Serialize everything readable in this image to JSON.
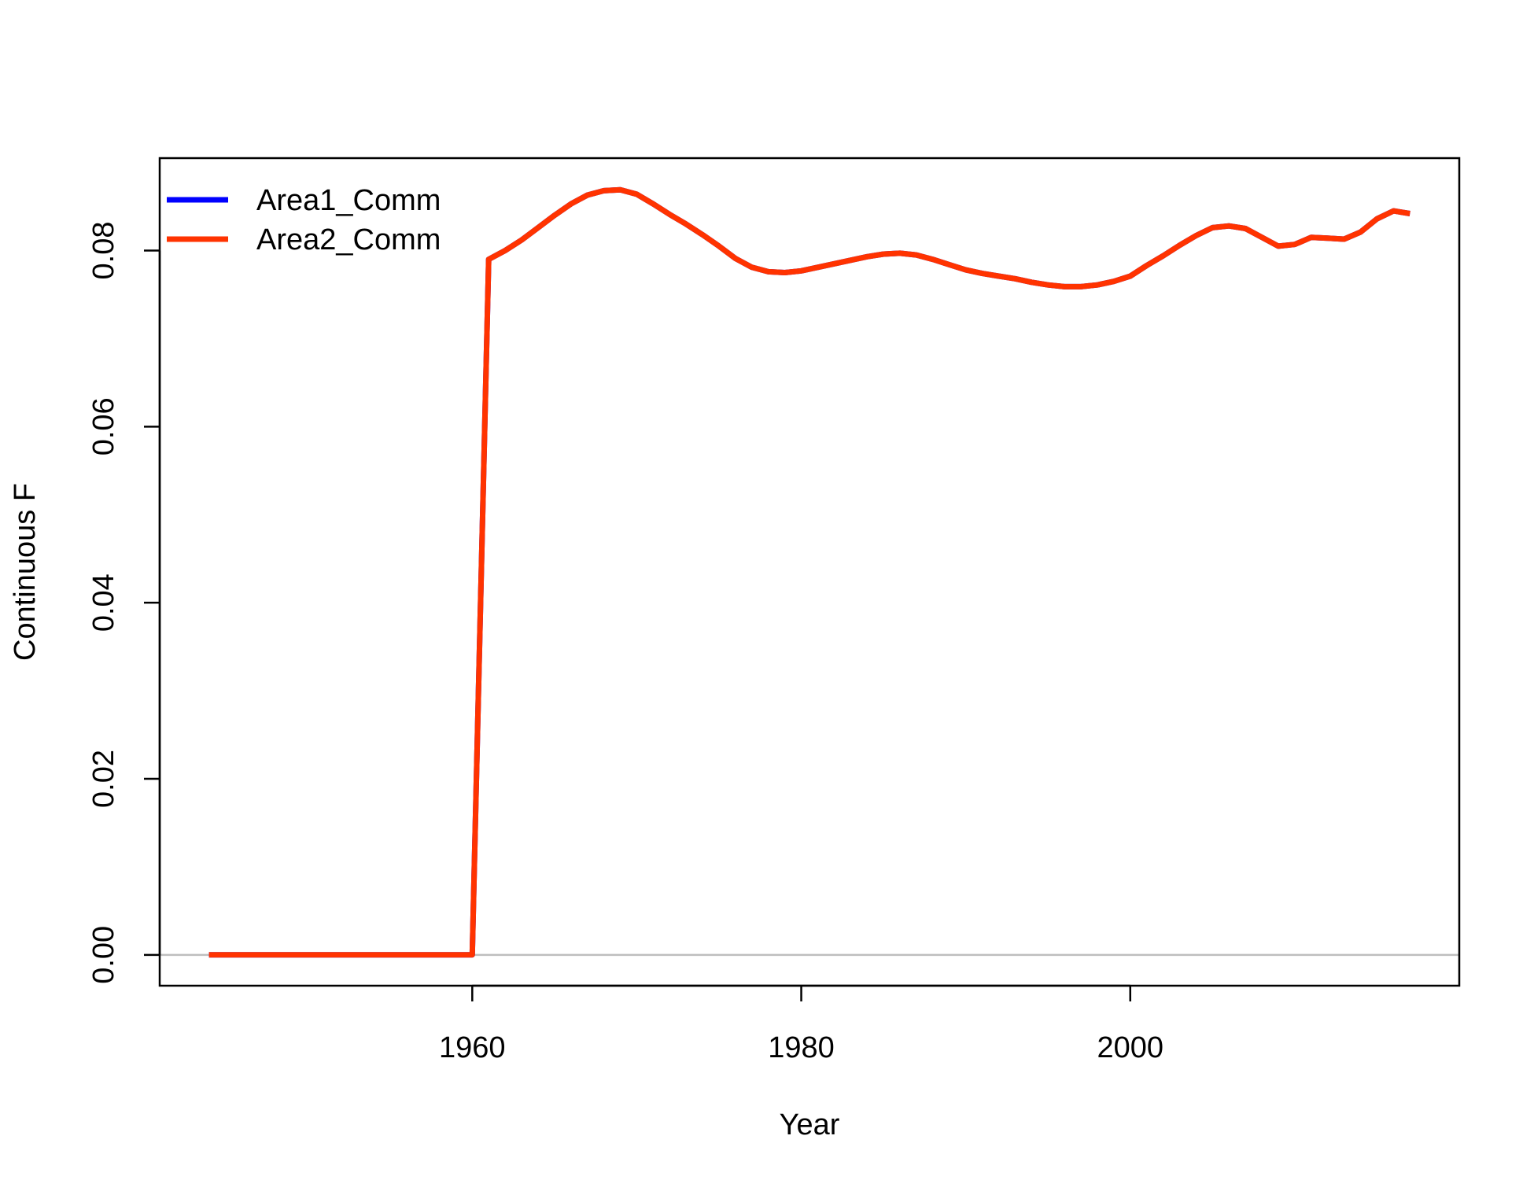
{
  "chart_data": {
    "type": "line",
    "title": "",
    "xlabel": "Year",
    "ylabel": "Continuous F",
    "xlim": [
      1941,
      2020
    ],
    "ylim": [
      -0.0035,
      0.0905
    ],
    "xticks": [
      1960,
      1980,
      2000
    ],
    "yticks": [
      0.0,
      0.02,
      0.04,
      0.06,
      0.08
    ],
    "ytick_labels": [
      "0.00",
      "0.02",
      "0.04",
      "0.06",
      "0.08"
    ],
    "reference_line": {
      "y": 0.0,
      "color": "#bebebe"
    },
    "grid": false,
    "legend": {
      "position": "top-left"
    },
    "x": [
      1944,
      1945,
      1946,
      1947,
      1948,
      1949,
      1950,
      1951,
      1952,
      1953,
      1954,
      1955,
      1956,
      1957,
      1958,
      1959,
      1960,
      1961,
      1962,
      1963,
      1964,
      1965,
      1966,
      1967,
      1968,
      1969,
      1970,
      1971,
      1972,
      1973,
      1974,
      1975,
      1976,
      1977,
      1978,
      1979,
      1980,
      1981,
      1982,
      1983,
      1984,
      1985,
      1986,
      1987,
      1988,
      1989,
      1990,
      1991,
      1992,
      1993,
      1994,
      1995,
      1996,
      1997,
      1998,
      1999,
      2000,
      2001,
      2002,
      2003,
      2004,
      2005,
      2006,
      2007,
      2008,
      2009,
      2010,
      2011,
      2012,
      2013,
      2014,
      2015,
      2016,
      2017
    ],
    "series": [
      {
        "name": "Area1_Comm",
        "color": "#0000ff",
        "values": [
          0,
          0,
          0,
          0,
          0,
          0,
          0,
          0,
          0,
          0,
          0,
          0,
          0,
          0,
          0,
          0,
          0,
          0.079,
          0.08,
          0.0812,
          0.0826,
          0.084,
          0.0853,
          0.0863,
          0.0868,
          0.0869,
          0.0864,
          0.0853,
          0.0841,
          0.083,
          0.0818,
          0.0805,
          0.0791,
          0.0781,
          0.0776,
          0.0775,
          0.0777,
          0.0781,
          0.0785,
          0.0789,
          0.0793,
          0.0796,
          0.0797,
          0.0795,
          0.079,
          0.0784,
          0.0778,
          0.0774,
          0.0771,
          0.0768,
          0.0764,
          0.0761,
          0.0759,
          0.0759,
          0.0761,
          0.0765,
          0.0771,
          0.0783,
          0.0794,
          0.0806,
          0.0817,
          0.0826,
          0.0828,
          0.0825,
          0.0815,
          0.0805,
          0.0807,
          0.0815,
          0.0814,
          0.0813,
          0.0821,
          0.0836,
          0.0845,
          0.0842
        ]
      },
      {
        "name": "Area2_Comm",
        "color": "#ff3300",
        "values": [
          0,
          0,
          0,
          0,
          0,
          0,
          0,
          0,
          0,
          0,
          0,
          0,
          0,
          0,
          0,
          0,
          0,
          0.079,
          0.08,
          0.0812,
          0.0826,
          0.084,
          0.0853,
          0.0863,
          0.0868,
          0.0869,
          0.0864,
          0.0853,
          0.0841,
          0.083,
          0.0818,
          0.0805,
          0.0791,
          0.0781,
          0.0776,
          0.0775,
          0.0777,
          0.0781,
          0.0785,
          0.0789,
          0.0793,
          0.0796,
          0.0797,
          0.0795,
          0.079,
          0.0784,
          0.0778,
          0.0774,
          0.0771,
          0.0768,
          0.0764,
          0.0761,
          0.0759,
          0.0759,
          0.0761,
          0.0765,
          0.0771,
          0.0783,
          0.0794,
          0.0806,
          0.0817,
          0.0826,
          0.0828,
          0.0825,
          0.0815,
          0.0805,
          0.0807,
          0.0815,
          0.0814,
          0.0813,
          0.0821,
          0.0836,
          0.0845,
          0.0842
        ]
      }
    ]
  }
}
